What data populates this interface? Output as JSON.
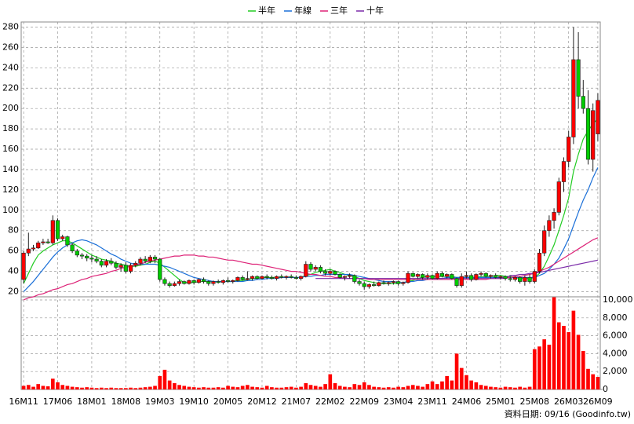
{
  "chart_data": {
    "type": "candlestick",
    "categories": [
      "16M11",
      null,
      null,
      null,
      null,
      null,
      null,
      "17M06",
      null,
      null,
      null,
      null,
      null,
      null,
      "18M01",
      null,
      null,
      null,
      null,
      null,
      null,
      "18M08",
      null,
      null,
      null,
      null,
      null,
      null,
      "19M03",
      null,
      null,
      null,
      null,
      null,
      null,
      "19M10",
      null,
      null,
      null,
      null,
      null,
      null,
      "20M05",
      null,
      null,
      null,
      null,
      null,
      null,
      "20M12",
      null,
      null,
      null,
      null,
      null,
      null,
      "21M07",
      null,
      null,
      null,
      null,
      null,
      null,
      "22M02",
      null,
      null,
      null,
      null,
      null,
      null,
      "22M09",
      null,
      null,
      null,
      null,
      null,
      null,
      "23M04",
      null,
      null,
      null,
      null,
      null,
      null,
      "23M11",
      null,
      null,
      null,
      null,
      null,
      null,
      "24M06",
      null,
      null,
      null,
      null,
      null,
      null,
      "25M01",
      null,
      null,
      null,
      null,
      null,
      null,
      "25M08",
      null,
      null,
      null,
      null,
      null,
      null,
      "26M03",
      null,
      null,
      null,
      null,
      null,
      "26M09"
    ],
    "open": [
      32,
      58,
      62,
      63,
      68,
      69,
      68,
      90,
      72,
      74,
      66,
      60,
      56,
      55,
      53,
      52,
      50,
      46,
      50,
      48,
      44,
      46,
      40,
      46,
      48,
      52,
      50,
      54,
      52,
      32,
      28,
      26,
      28,
      30,
      28,
      31,
      29,
      32,
      30,
      28,
      30,
      29,
      31,
      30,
      31,
      34,
      32,
      33,
      35,
      33,
      35,
      34,
      33,
      35,
      34,
      35,
      34,
      33,
      35,
      47,
      42,
      44,
      40,
      38,
      40,
      37,
      34,
      35,
      36,
      30,
      28,
      25,
      27,
      26,
      29,
      28,
      29,
      30,
      28,
      29,
      38,
      35,
      37,
      34,
      36,
      33,
      38,
      35,
      37,
      33,
      26,
      35,
      36,
      32,
      37,
      38,
      35,
      36,
      34,
      35,
      33,
      32,
      34,
      30,
      34,
      30,
      40,
      58,
      80,
      90,
      98,
      128,
      148,
      172,
      248,
      212,
      200,
      150,
      175
    ],
    "high": [
      60,
      78,
      66,
      70,
      72,
      72,
      95,
      92,
      76,
      75,
      68,
      62,
      58,
      57,
      56,
      55,
      52,
      52,
      53,
      50,
      48,
      49,
      48,
      50,
      54,
      55,
      56,
      56,
      53,
      34,
      30,
      30,
      32,
      31,
      32,
      32,
      33,
      34,
      31,
      31,
      32,
      32,
      34,
      32,
      35,
      36,
      40,
      36,
      36,
      36,
      37,
      36,
      36,
      37,
      36,
      37,
      36,
      36,
      50,
      49,
      46,
      46,
      42,
      42,
      41,
      38,
      36,
      38,
      37,
      32,
      30,
      28,
      30,
      30,
      31,
      30,
      31,
      31,
      30,
      40,
      39,
      38,
      38,
      38,
      37,
      40,
      40,
      38,
      38,
      34,
      38,
      40,
      38,
      38,
      40,
      39,
      37,
      38,
      36,
      36,
      35,
      35,
      35,
      36,
      37,
      42,
      62,
      85,
      95,
      102,
      132,
      152,
      178,
      280,
      275,
      228,
      218,
      205,
      215
    ],
    "low": [
      28,
      55,
      60,
      62,
      66,
      67,
      66,
      70,
      70,
      64,
      58,
      54,
      52,
      50,
      49,
      48,
      44,
      44,
      46,
      42,
      40,
      38,
      38,
      44,
      46,
      48,
      48,
      48,
      30,
      26,
      24,
      25,
      26,
      27,
      27,
      27,
      28,
      28,
      26,
      26,
      28,
      27,
      29,
      28,
      30,
      31,
      31,
      31,
      32,
      32,
      32,
      32,
      31,
      33,
      32,
      33,
      32,
      31,
      34,
      40,
      40,
      38,
      36,
      36,
      36,
      33,
      31,
      33,
      28,
      26,
      22,
      23,
      25,
      25,
      27,
      26,
      27,
      26,
      26,
      28,
      34,
      33,
      32,
      32,
      32,
      32,
      34,
      33,
      32,
      24,
      24,
      33,
      30,
      31,
      35,
      34,
      33,
      33,
      32,
      31,
      30,
      30,
      28,
      26,
      28,
      28,
      38,
      55,
      74,
      82,
      95,
      118,
      142,
      165,
      200,
      195,
      145,
      138,
      168
    ],
    "close": [
      58,
      62,
      63,
      68,
      69,
      68,
      90,
      72,
      74,
      66,
      60,
      56,
      55,
      53,
      52,
      50,
      46,
      50,
      48,
      44,
      46,
      40,
      46,
      48,
      52,
      50,
      54,
      52,
      32,
      28,
      26,
      28,
      30,
      28,
      31,
      29,
      32,
      30,
      28,
      30,
      29,
      31,
      30,
      31,
      34,
      32,
      33,
      35,
      33,
      35,
      34,
      33,
      35,
      34,
      35,
      34,
      33,
      35,
      47,
      42,
      44,
      40,
      38,
      40,
      37,
      34,
      35,
      36,
      30,
      28,
      25,
      27,
      26,
      29,
      28,
      29,
      30,
      28,
      29,
      38,
      35,
      37,
      34,
      36,
      33,
      38,
      35,
      37,
      33,
      26,
      35,
      36,
      32,
      37,
      38,
      35,
      36,
      34,
      35,
      33,
      32,
      34,
      30,
      34,
      30,
      40,
      58,
      80,
      90,
      98,
      128,
      148,
      172,
      248,
      212,
      200,
      150,
      198,
      208
    ],
    "volume": [
      400,
      500,
      300,
      600,
      400,
      350,
      1200,
      800,
      500,
      400,
      300,
      250,
      200,
      250,
      200,
      150,
      200,
      150,
      200,
      150,
      150,
      150,
      200,
      150,
      200,
      250,
      300,
      400,
      1500,
      2200,
      1000,
      700,
      500,
      400,
      300,
      250,
      200,
      250,
      200,
      200,
      250,
      200,
      400,
      300,
      250,
      400,
      500,
      300,
      250,
      200,
      400,
      250,
      200,
      200,
      250,
      300,
      200,
      300,
      700,
      500,
      400,
      300,
      600,
      1700,
      700,
      400,
      300,
      250,
      600,
      500,
      800,
      500,
      300,
      250,
      200,
      250,
      200,
      300,
      250,
      400,
      500,
      400,
      300,
      600,
      900,
      600,
      900,
      1500,
      1000,
      4000,
      2400,
      1600,
      1000,
      800,
      500,
      400,
      300,
      250,
      200,
      300,
      250,
      200,
      300,
      200,
      300,
      4500,
      4800,
      5600,
      5000,
      10300,
      7500,
      7100,
      6400,
      8800,
      6100,
      4300,
      2300,
      1700,
      1400
    ],
    "up_color": "#ff0000",
    "down_color": "#00cc00",
    "volume_color": "#ff0000",
    "series": [
      {
        "name": "半年",
        "color": "#22cc22",
        "values": [
          28,
          38,
          48,
          56,
          60,
          63,
          66,
          68,
          70,
          70,
          68,
          65,
          62,
          59,
          56,
          54,
          52,
          51,
          50,
          48,
          47,
          46,
          45,
          45,
          46,
          47,
          49,
          50,
          48,
          44,
          40,
          36,
          32,
          29,
          29,
          29,
          30,
          30,
          30,
          30,
          30,
          30,
          30,
          30,
          31,
          31,
          32,
          33,
          33,
          34,
          34,
          34,
          34,
          34,
          34,
          34,
          34,
          34,
          36,
          37,
          39,
          40,
          41,
          42,
          40,
          39,
          37,
          36,
          35,
          33,
          31,
          30,
          29,
          28,
          28,
          28,
          28,
          28,
          29,
          30,
          31,
          33,
          34,
          35,
          35,
          35,
          35,
          35,
          35,
          34,
          34,
          34,
          34,
          34,
          35,
          35,
          35,
          36,
          36,
          35,
          35,
          34,
          33,
          33,
          33,
          34,
          38,
          45,
          55,
          66,
          80,
          95,
          112,
          138,
          155,
          170,
          178,
          185,
          190
        ]
      },
      {
        "name": "年線",
        "color": "#1a6fd8",
        "values": [
          20,
          25,
          30,
          36,
          42,
          48,
          54,
          59,
          63,
          66,
          68,
          70,
          71,
          70,
          68,
          66,
          63,
          60,
          57,
          55,
          52,
          50,
          48,
          47,
          47,
          47,
          47,
          47,
          46,
          45,
          44,
          42,
          40,
          38,
          36,
          34,
          33,
          32,
          31,
          30,
          30,
          30,
          30,
          30,
          30,
          30,
          31,
          31,
          32,
          32,
          33,
          33,
          33,
          34,
          34,
          34,
          34,
          34,
          35,
          35,
          36,
          36,
          37,
          37,
          37,
          37,
          37,
          37,
          36,
          35,
          34,
          33,
          32,
          31,
          30,
          30,
          30,
          29,
          29,
          30,
          30,
          31,
          31,
          32,
          32,
          33,
          33,
          34,
          34,
          34,
          34,
          34,
          34,
          34,
          34,
          34,
          34,
          34,
          34,
          34,
          34,
          34,
          34,
          34,
          34,
          34,
          36,
          38,
          42,
          47,
          53,
          62,
          72,
          85,
          98,
          110,
          120,
          132,
          142
        ]
      },
      {
        "name": "三年",
        "color": "#dd2277",
        "values": [
          12,
          14,
          15,
          17,
          18,
          20,
          22,
          23,
          25,
          27,
          28,
          30,
          32,
          33,
          35,
          36,
          37,
          38,
          40,
          41,
          43,
          44,
          45,
          46,
          47,
          49,
          50,
          51,
          52,
          53,
          54,
          55,
          55,
          56,
          56,
          56,
          55,
          55,
          54,
          54,
          53,
          52,
          51,
          51,
          50,
          49,
          48,
          47,
          47,
          46,
          45,
          44,
          43,
          42,
          41,
          40,
          40,
          39,
          38,
          37,
          37,
          36,
          35,
          35,
          34,
          34,
          33,
          33,
          33,
          33,
          33,
          32,
          32,
          32,
          32,
          32,
          32,
          32,
          32,
          32,
          32,
          32,
          32,
          32,
          32,
          32,
          32,
          32,
          32,
          32,
          32,
          32,
          32,
          32,
          32,
          32,
          33,
          33,
          33,
          34,
          34,
          35,
          35,
          36,
          37,
          38,
          40,
          42,
          44,
          47,
          50,
          53,
          56,
          59,
          62,
          65,
          68,
          71,
          73
        ]
      },
      {
        "name": "十年",
        "color": "#7a2aa8",
        "values": [
          null,
          null,
          null,
          null,
          null,
          null,
          null,
          null,
          null,
          null,
          null,
          null,
          null,
          null,
          null,
          null,
          null,
          null,
          null,
          null,
          null,
          null,
          null,
          null,
          null,
          null,
          null,
          null,
          null,
          null,
          null,
          null,
          null,
          null,
          null,
          null,
          null,
          null,
          null,
          null,
          null,
          null,
          null,
          null,
          null,
          null,
          null,
          null,
          null,
          null,
          null,
          null,
          null,
          null,
          null,
          null,
          null,
          null,
          null,
          null,
          33,
          33,
          33,
          33,
          33,
          33,
          33,
          33,
          33,
          33,
          33,
          33,
          33,
          33,
          33,
          33,
          33,
          33,
          33,
          33,
          33,
          33,
          33,
          33,
          33,
          33,
          33,
          33,
          33,
          33,
          33,
          33,
          33,
          33,
          33,
          33,
          33,
          33,
          33,
          33,
          36,
          36,
          37,
          37,
          38,
          38,
          39,
          40,
          41,
          42,
          43,
          44,
          45,
          46,
          47,
          48,
          49,
          50,
          51
        ]
      }
    ],
    "ylim": [
      15,
      285
    ],
    "yticks": [
      20,
      40,
      60,
      80,
      100,
      120,
      140,
      160,
      180,
      200,
      220,
      240,
      260,
      280
    ],
    "y2lim": [
      0,
      10350
    ],
    "y2ticks": [
      0,
      {
        "value": 2000,
        "label": "2,000"
      },
      {
        "value": 4000,
        "label": "4,000"
      },
      {
        "value": 6000,
        "label": "6,000"
      },
      {
        "value": 8000,
        "label": "8,000"
      },
      {
        "value": 10000,
        "label": "10,000"
      }
    ],
    "grid": true,
    "legend": "top",
    "note": "資料日期: 09/16 (Goodinfo.tw)"
  }
}
